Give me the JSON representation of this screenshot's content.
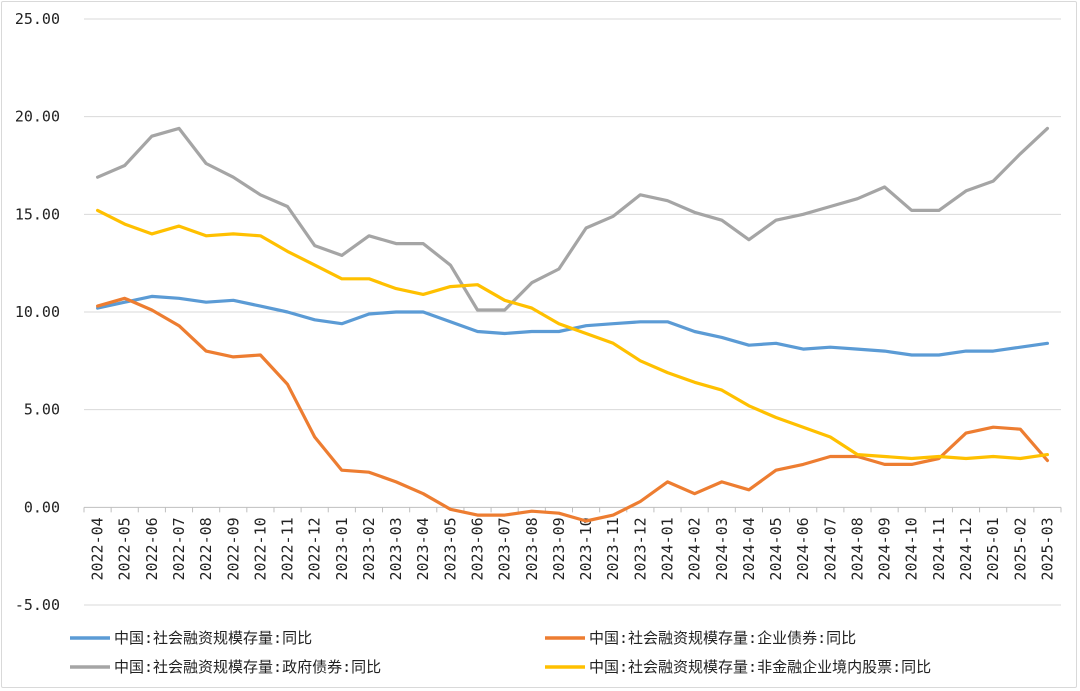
{
  "chart_data": {
    "type": "line",
    "title": "",
    "xlabel": "",
    "ylabel": "",
    "ylim": [
      -5,
      25
    ],
    "yticks": [
      "25.00",
      "20.00",
      "15.00",
      "10.00",
      "5.00",
      "0.00",
      "-5.00"
    ],
    "ytick_values": [
      25,
      20,
      15,
      10,
      5,
      0,
      -5
    ],
    "grid": "horizontal",
    "legend_position": "bottom",
    "categories": [
      "2022-04",
      "2022-05",
      "2022-06",
      "2022-07",
      "2022-08",
      "2022-09",
      "2022-10",
      "2022-11",
      "2022-12",
      "2023-01",
      "2023-02",
      "2023-03",
      "2023-04",
      "2023-05",
      "2023-06",
      "2023-07",
      "2023-08",
      "2023-09",
      "2023-10",
      "2023-11",
      "2023-12",
      "2024-01",
      "2024-02",
      "2024-03",
      "2024-04",
      "2024-05",
      "2024-06",
      "2024-07",
      "2024-08",
      "2024-09",
      "2024-10",
      "2024-11",
      "2024-12",
      "2025-01",
      "2025-02",
      "2025-03"
    ],
    "series": [
      {
        "name": "中国:社会融资规模存量:同比",
        "color": "#5b9bd5",
        "values": [
          10.2,
          10.5,
          10.8,
          10.7,
          10.5,
          10.6,
          10.3,
          10.0,
          9.6,
          9.4,
          9.9,
          10.0,
          10.0,
          9.5,
          9.0,
          8.9,
          9.0,
          9.0,
          9.3,
          9.4,
          9.5,
          9.5,
          9.0,
          8.7,
          8.3,
          8.4,
          8.1,
          8.2,
          8.1,
          8.0,
          7.8,
          7.8,
          8.0,
          8.0,
          8.2,
          8.4
        ]
      },
      {
        "name": "中国:社会融资规模存量:企业债券:同比",
        "color": "#ed7d31",
        "values": [
          10.3,
          10.7,
          10.1,
          9.3,
          8.0,
          7.7,
          7.8,
          6.3,
          3.6,
          1.9,
          1.8,
          1.3,
          0.7,
          -0.1,
          -0.4,
          -0.4,
          -0.2,
          -0.3,
          -0.7,
          -0.4,
          0.3,
          1.3,
          0.7,
          1.3,
          0.9,
          1.9,
          2.2,
          2.6,
          2.6,
          2.2,
          2.2,
          2.5,
          3.8,
          4.1,
          4.0,
          2.4
        ]
      },
      {
        "name": "中国:社会融资规模存量:政府债券:同比",
        "color": "#a5a5a5",
        "values": [
          16.9,
          17.5,
          19.0,
          19.4,
          17.6,
          16.9,
          16.0,
          15.4,
          13.4,
          12.9,
          13.9,
          13.5,
          13.5,
          12.4,
          10.1,
          10.1,
          11.5,
          12.2,
          14.3,
          14.9,
          16.0,
          15.7,
          15.1,
          14.7,
          13.7,
          14.7,
          15.0,
          15.4,
          15.8,
          16.4,
          15.2,
          15.2,
          16.2,
          16.7,
          18.1,
          19.4
        ]
      },
      {
        "name": "中国:社会融资规模存量:非金融企业境内股票:同比",
        "color": "#ffc000",
        "values": [
          15.2,
          14.5,
          14.0,
          14.4,
          13.9,
          14.0,
          13.9,
          13.1,
          12.4,
          11.7,
          11.7,
          11.2,
          10.9,
          11.3,
          11.4,
          10.6,
          10.2,
          9.4,
          8.9,
          8.4,
          7.5,
          6.9,
          6.4,
          6.0,
          5.2,
          4.6,
          4.1,
          3.6,
          2.7,
          2.6,
          2.5,
          2.6,
          2.5,
          2.6,
          2.5,
          2.7
        ]
      }
    ]
  }
}
